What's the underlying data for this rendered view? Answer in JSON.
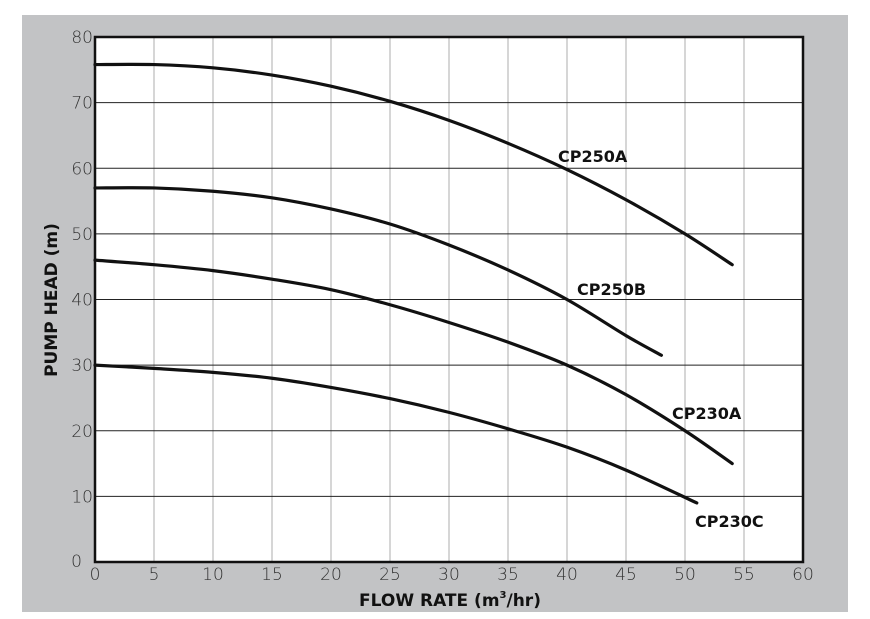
{
  "chart_data": {
    "type": "line",
    "title": "",
    "xlabel": "FLOW RATE (m",
    "xlabel_sup": "3",
    "xlabel_end": "/hr)",
    "ylabel": "PUMP HEAD (m)",
    "xlim": [
      0,
      60
    ],
    "ylim": [
      0,
      80
    ],
    "xticks": [
      0,
      5,
      10,
      15,
      20,
      25,
      30,
      35,
      40,
      45,
      50,
      55,
      60
    ],
    "yticks": [
      0,
      10,
      20,
      30,
      40,
      50,
      60,
      70,
      80
    ],
    "grid": true,
    "legend": "inline labels at curve ends",
    "colors": {
      "background": "#c2c3c5",
      "plot": "#ffffff",
      "line": "#111111",
      "vgrid": "#c8c8c8",
      "hgrid": "#222222"
    },
    "series": [
      {
        "name": "CP250A",
        "x": [
          0,
          5,
          10,
          15,
          20,
          25,
          30,
          35,
          40,
          45,
          50,
          54
        ],
        "y": [
          75.8,
          75.8,
          75.3,
          74.2,
          72.5,
          70.2,
          67.3,
          63.8,
          59.8,
          55.2,
          50,
          45.3
        ]
      },
      {
        "name": "CP250B",
        "x": [
          0,
          5,
          10,
          15,
          20,
          25,
          30,
          35,
          40,
          45,
          48
        ],
        "y": [
          57,
          57,
          56.5,
          55.5,
          53.8,
          51.5,
          48.3,
          44.5,
          40,
          34.5,
          31.5
        ]
      },
      {
        "name": "CP230A",
        "x": [
          0,
          5,
          10,
          15,
          20,
          25,
          30,
          35,
          40,
          45,
          50,
          54
        ],
        "y": [
          46,
          45.3,
          44.4,
          43.1,
          41.5,
          39.2,
          36.5,
          33.5,
          30,
          25.5,
          20,
          15
        ]
      },
      {
        "name": "CP230C",
        "x": [
          0,
          5,
          10,
          15,
          20,
          25,
          30,
          35,
          40,
          45,
          51
        ],
        "y": [
          30,
          29.5,
          28.9,
          28,
          26.6,
          24.9,
          22.8,
          20.3,
          17.5,
          14,
          9
        ]
      }
    ]
  }
}
